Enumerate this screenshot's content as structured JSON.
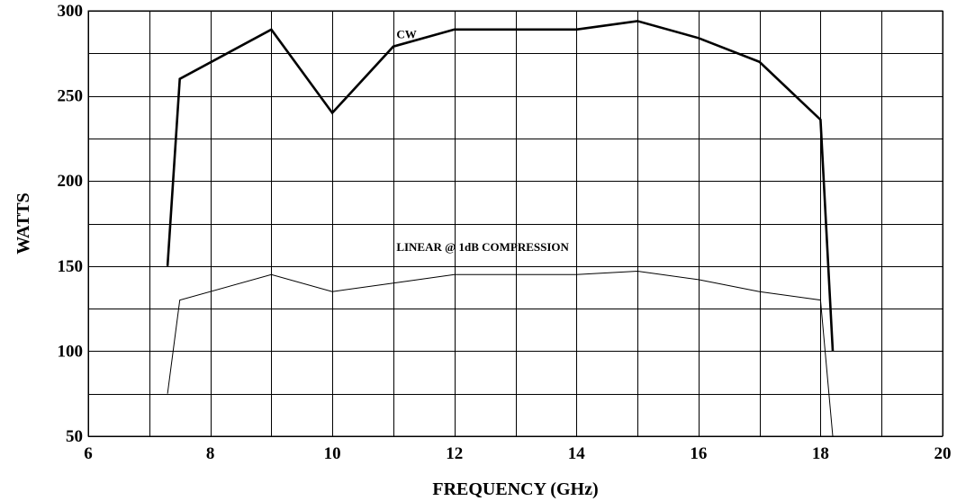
{
  "chart_data": {
    "type": "line",
    "title": "",
    "xlabel": "FREQUENCY (GHz)",
    "ylabel": "WATTS",
    "xlim": [
      6,
      20
    ],
    "ylim": [
      50,
      300
    ],
    "x_ticks": [
      6,
      8,
      10,
      12,
      14,
      16,
      18,
      20
    ],
    "y_ticks": [
      50,
      100,
      150,
      200,
      250,
      300
    ],
    "x_tick_labels": [
      "6",
      "8",
      "10",
      "12",
      "14",
      "16",
      "18",
      "20"
    ],
    "y_tick_labels": [
      "50",
      "100",
      "150",
      "200",
      "250",
      "300"
    ],
    "x_grid_step": 1,
    "y_grid_step": 25,
    "grid": true,
    "legend": "none",
    "series": [
      {
        "name": "CW",
        "color": "#000000",
        "line_style": "thick",
        "x": [
          7.3,
          7.5,
          9,
          10,
          11,
          12,
          14,
          15,
          16,
          17,
          18,
          18.2
        ],
        "y": [
          150,
          260,
          289,
          240,
          279,
          289,
          289,
          294,
          284,
          270,
          236,
          100
        ]
      },
      {
        "name": "LINEAR @ 1dB COMPRESSION",
        "color": "#000000",
        "line_style": "thin",
        "x": [
          7.3,
          7.5,
          9,
          10,
          11,
          12,
          14,
          15,
          16,
          17,
          18,
          18.2
        ],
        "y": [
          75,
          130,
          145,
          135,
          140,
          145,
          145,
          147,
          142,
          135,
          130,
          50
        ]
      }
    ],
    "annotations": [
      {
        "text": "CW",
        "series": 0
      },
      {
        "text": "LINEAR @ 1dB COMPRESSION",
        "series": 1
      }
    ]
  }
}
